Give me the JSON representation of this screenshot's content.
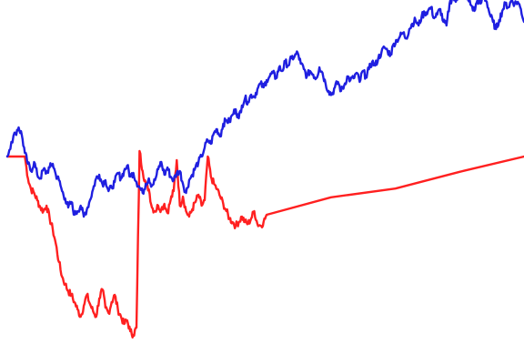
{
  "chart_data": {
    "type": "line",
    "title": "",
    "xlabel": "",
    "ylabel": "",
    "axes_visible": false,
    "grid": false,
    "legend": "none",
    "xlim": [
      0,
      100
    ],
    "ylim": [
      -100,
      85
    ],
    "reference_level": 0,
    "series": [
      {
        "color": "#1f1fe0",
        "x": [
          0,
          0.8,
          1.6,
          2.2,
          2.8,
          3.4,
          4.0,
          4.6,
          5.2,
          5.8,
          6.4,
          7.0,
          7.6,
          8.2,
          8.8,
          9.4,
          10.0,
          10.6,
          11.2,
          11.8,
          12.4,
          13.0,
          13.6,
          14.2,
          14.8,
          15.4,
          16.0,
          16.6,
          17.2,
          17.8,
          18.4,
          19.0,
          19.6,
          20.2,
          20.8,
          21.4,
          22.0,
          22.6,
          23.2,
          23.8,
          24.4,
          25.0,
          25.6,
          26.2,
          26.8,
          27.4,
          28.0,
          28.6,
          29.2,
          29.8,
          30.4,
          31.0,
          31.6,
          32.2,
          32.8,
          33.4,
          34.0,
          34.6,
          35.2,
          35.8,
          36.4,
          37.0,
          37.6,
          38.2,
          38.8,
          39.4,
          40.0,
          40.6,
          41.2,
          41.8,
          42.4,
          43.0,
          43.6,
          44.2,
          44.8,
          45.4,
          46.0,
          46.6,
          47.2,
          47.8,
          48.4,
          49.0,
          49.6,
          50.2,
          50.8,
          51.4,
          52.0,
          52.6,
          53.2,
          53.8,
          54.4,
          55.0,
          55.6,
          56.2,
          56.8,
          57.4,
          58.0,
          58.6,
          59.2,
          59.8,
          60.4,
          61.0,
          61.6,
          62.2,
          62.8,
          63.4,
          64.0,
          64.6,
          65.2,
          65.8,
          66.4,
          67.0,
          67.6,
          68.2,
          68.8,
          69.4,
          70.0,
          70.6,
          71.2,
          71.8,
          72.4,
          73.0,
          73.6,
          74.2,
          74.8,
          75.4,
          76.0,
          76.6,
          77.2,
          77.8,
          78.4,
          79.0,
          79.6,
          80.2,
          80.8,
          81.4,
          82.0,
          82.6,
          83.2,
          83.8,
          84.4,
          85.0,
          85.6,
          86.2,
          86.8,
          87.4,
          88.0,
          88.6,
          89.2,
          89.8,
          90.4,
          91.0,
          91.6,
          92.2,
          92.8,
          93.4,
          94.0,
          94.6,
          95.2,
          95.8,
          96.4,
          97.0,
          97.6,
          98.2,
          98.8,
          99.4,
          100
        ],
        "y": [
          0,
          8,
          13,
          16,
          12,
          2,
          -4,
          -8,
          -3,
          -10,
          -12,
          -7,
          -9,
          -6,
          -4,
          -10,
          -13,
          -19,
          -23,
          -28,
          -25,
          -32,
          -30,
          -27,
          -33,
          -29,
          -24,
          -18,
          -12,
          -10,
          -15,
          -13,
          -19,
          -17,
          -14,
          -9,
          -12,
          -8,
          -5,
          -11,
          -9,
          -14,
          -17,
          -20,
          -15,
          -12,
          -16,
          -13,
          -7,
          -3,
          -10,
          -6,
          -11,
          -13,
          -9,
          -8,
          -15,
          -20,
          -13,
          -10,
          -6,
          -3,
          0,
          5,
          9,
          7,
          13,
          15,
          11,
          18,
          20,
          19,
          23,
          26,
          21,
          28,
          32,
          30,
          34,
          33,
          37,
          40,
          38,
          42,
          44,
          46,
          43,
          49,
          47,
          52,
          50,
          54,
          55,
          57,
          51,
          48,
          44,
          47,
          45,
          43,
          49,
          46,
          40,
          36,
          34,
          38,
          41,
          36,
          39,
          44,
          42,
          43,
          46,
          41,
          47,
          44,
          48,
          52,
          50,
          54,
          57,
          60,
          58,
          56,
          62,
          64,
          66,
          68,
          65,
          70,
          73,
          75,
          72,
          77,
          79,
          80,
          82,
          76,
          78,
          81,
          74,
          72,
          84,
          88,
          85,
          89,
          87,
          90,
          86,
          83,
          80,
          86,
          84,
          88,
          85,
          78,
          74,
          70,
          75,
          80,
          84,
          82,
          86,
          84,
          85,
          81,
          74
        ]
      },
      {
        "color": "#ff2020",
        "x": [
          0,
          0.8,
          1.6,
          2.2,
          2.8,
          3.4,
          4.0,
          4.6,
          5.2,
          5.8,
          6.4,
          7.0,
          7.6,
          8.2,
          8.8,
          9.4,
          10.0,
          10.6,
          11.2,
          11.8,
          12.4,
          13.0,
          13.6,
          14.2,
          14.8,
          15.4,
          16.0,
          16.6,
          17.2,
          17.8,
          18.4,
          19.0,
          19.6,
          20.2,
          20.8,
          21.4,
          22.0,
          22.6,
          23.2,
          23.8,
          24.4,
          25.0,
          25.6,
          26.2,
          26.8,
          27.4,
          28.0,
          28.6,
          29.2,
          29.8,
          30.4,
          31.0,
          31.6,
          32.2,
          32.8,
          33.4,
          34.0,
          34.6,
          35.2,
          35.8,
          36.4,
          37.0,
          37.6,
          38.2,
          38.8,
          39.4,
          40.0,
          40.6,
          41.2,
          41.8,
          42.4,
          43.0,
          43.6,
          44.2,
          44.8,
          45.4,
          46.0,
          46.6,
          47.2,
          47.8,
          48.4,
          49.0,
          49.6,
          50.2,
          100
        ],
        "y": [
          0,
          0,
          0,
          0,
          0,
          0,
          -12,
          -18,
          -20,
          -24,
          -28,
          -30,
          -27,
          -34,
          -40,
          -48,
          -58,
          -66,
          -70,
          -74,
          -76,
          -80,
          -84,
          -88,
          -82,
          -76,
          -81,
          -85,
          -88,
          -78,
          -73,
          -83,
          -86,
          -80,
          -76,
          -84,
          -88,
          -92,
          -90,
          -96,
          -98,
          -94,
          3,
          -8,
          -15,
          -18,
          -28,
          -30,
          -27,
          -29,
          -26,
          -31,
          -24,
          -19,
          -2,
          -27,
          -22,
          -30,
          -33,
          -29,
          -25,
          -21,
          -27,
          -24,
          0,
          -11,
          -15,
          -18,
          -22,
          -26,
          -30,
          -34,
          -36,
          -38,
          -36,
          -33,
          -36,
          -37,
          -34,
          -30,
          -37,
          -38,
          -36,
          -32,
          0
        ]
      }
    ]
  }
}
